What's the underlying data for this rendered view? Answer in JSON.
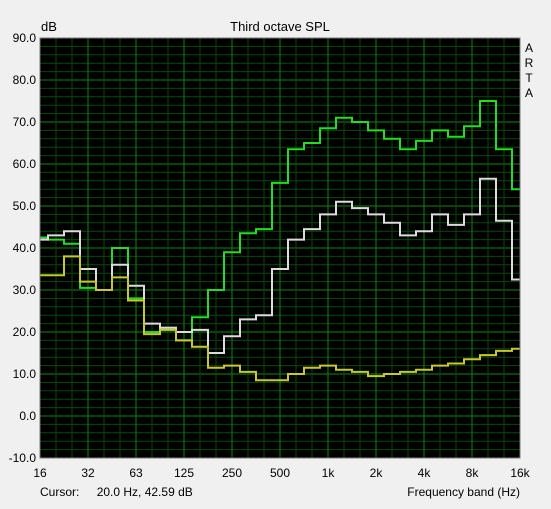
{
  "chart_data": {
    "type": "line",
    "title": "Third octave SPL",
    "ylabel": "dB",
    "xlabel": "Frequency band (Hz)",
    "side_label": [
      "A",
      "R",
      "T",
      "A"
    ],
    "ylim": [
      -10,
      90
    ],
    "y_ticks": [
      "90.0",
      "80.0",
      "70.0",
      "60.0",
      "50.0",
      "40.0",
      "30.0",
      "20.0",
      "10.0",
      "0.0",
      "-10.0"
    ],
    "x_ticks": [
      "16",
      "32",
      "63",
      "125",
      "250",
      "500",
      "1k",
      "2k",
      "4k",
      "8k",
      "16k"
    ],
    "x_bands": [
      "16",
      "20",
      "25",
      "31.5",
      "40",
      "50",
      "63",
      "80",
      "100",
      "125",
      "160",
      "200",
      "250",
      "315",
      "400",
      "500",
      "630",
      "800",
      "1k",
      "1.25k",
      "1.6k",
      "2k",
      "2.5k",
      "3.15k",
      "4k",
      "5k",
      "6.3k",
      "8k",
      "10k",
      "12.5k",
      "16k"
    ],
    "grid": true,
    "series": [
      {
        "color": "#22dd22",
        "values": [
          42.5,
          42.0,
          41.0,
          30.5,
          30.0,
          40.0,
          28.0,
          20.0,
          21.0,
          18.0,
          23.5,
          30.0,
          39.0,
          43.5,
          44.5,
          55.5,
          63.5,
          65.0,
          68.5,
          71.0,
          70.0,
          68.0,
          66.0,
          63.5,
          65.5,
          68.0,
          66.5,
          69.0,
          75.0,
          63.5,
          54.0
        ]
      },
      {
        "color": "#dcdcdc",
        "values": [
          42.0,
          43.0,
          44.0,
          35.0,
          30.0,
          36.0,
          31.0,
          22.0,
          21.0,
          20.0,
          20.5,
          15.0,
          19.0,
          23.0,
          24.0,
          35.0,
          42.0,
          44.5,
          48.0,
          51.0,
          49.5,
          48.0,
          46.0,
          43.0,
          44.0,
          48.0,
          45.5,
          48.0,
          56.5,
          46.5,
          32.5
        ]
      },
      {
        "color": "#c8c830",
        "values": [
          33.5,
          33.5,
          38.0,
          32.0,
          30.0,
          33.0,
          27.5,
          19.5,
          20.5,
          18.0,
          16.5,
          11.5,
          12.0,
          10.5,
          8.5,
          8.5,
          10.0,
          11.5,
          12.0,
          11.0,
          10.5,
          9.5,
          10.0,
          10.5,
          11.0,
          12.0,
          12.5,
          13.5,
          14.5,
          15.5,
          16.0
        ]
      }
    ]
  },
  "cursor": {
    "label": "Cursor:",
    "value": "20.0 Hz, 42.59 dB"
  }
}
